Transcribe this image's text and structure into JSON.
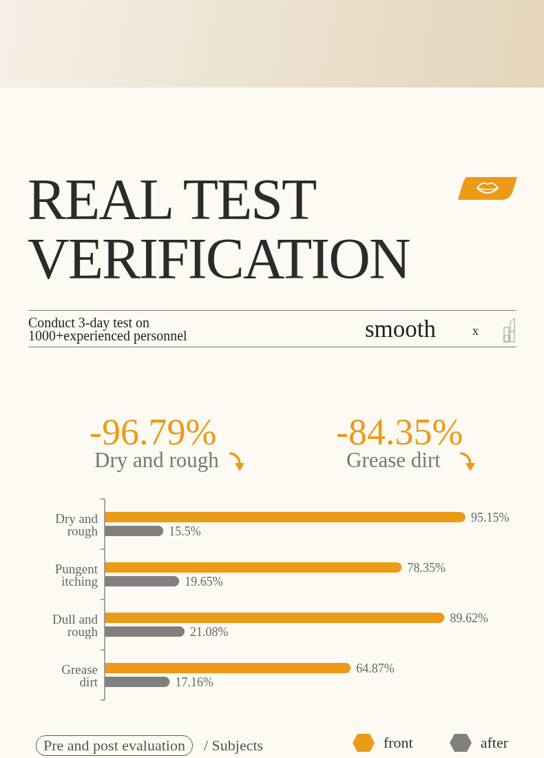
{
  "chart_data": {
    "type": "bar",
    "orientation": "horizontal",
    "title": "REAL TEST VERIFICATION",
    "subtitle": "Conduct 3-day test on 1000+experienced personnel",
    "categories": [
      "Dry and rough",
      "Pungent itching",
      "Dull and rough",
      "Grease dirt"
    ],
    "series": [
      {
        "name": "front",
        "color": "#ec9b17",
        "values": [
          95.15,
          78.35,
          89.62,
          64.87
        ],
        "value_labels": [
          "95.15%",
          "78.35%",
          "89.62%",
          "64.87%"
        ]
      },
      {
        "name": "after",
        "color": "#808080",
        "values": [
          15.5,
          19.65,
          21.08,
          17.16
        ],
        "value_labels": [
          "15.5%",
          "19.65%",
          "21.08%",
          "17.16%"
        ]
      }
    ],
    "tick_labels": "y",
    "legend": "bottom right",
    "annotations": [
      "-96.79%",
      "Dry and rough",
      "-84.35%",
      "Grease dirt",
      "smooth",
      "x",
      "Pre and post evaluation",
      "/ Subjects"
    ]
  }
}
